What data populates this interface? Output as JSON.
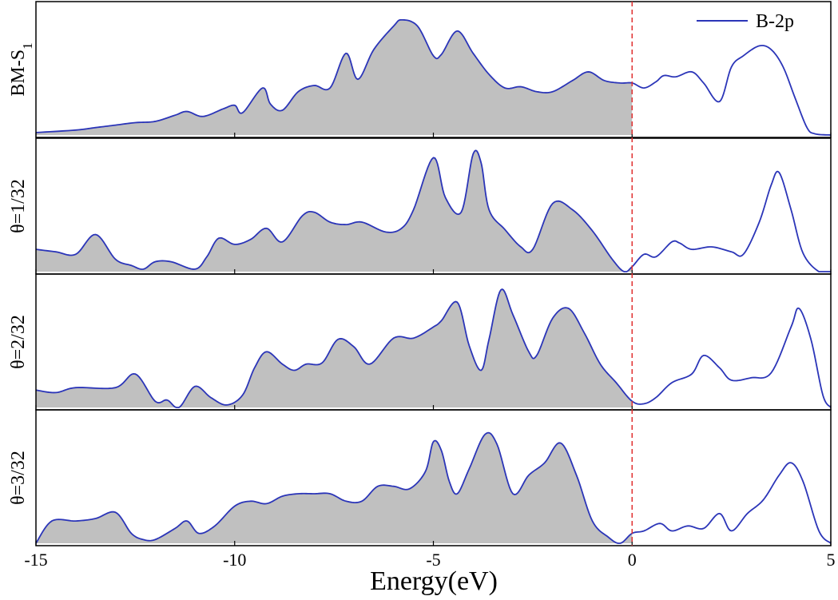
{
  "chart_data": {
    "type": "area",
    "title": "",
    "xlabel": "Energy(eV)",
    "ylabel": "",
    "xlim": [
      -15,
      5
    ],
    "x_ticks": [
      "-15",
      "-10",
      "-5",
      "0",
      "5"
    ],
    "fermi_level": 0,
    "fill_below_fermi": true,
    "legend": {
      "label": "B-2p",
      "placement": "top-right"
    },
    "colors": {
      "line": "#2b35b8",
      "fill": "#c0c0c0",
      "fermi": "#e03030"
    },
    "panels": [
      {
        "label": "BM-S",
        "label_sub": "1",
        "series": {
          "name": "B-2p",
          "x": [
            -15,
            -14,
            -13.5,
            -13,
            -12.5,
            -12,
            -11.5,
            -11.2,
            -10.8,
            -10.3,
            -10,
            -9.8,
            -9.3,
            -9.1,
            -8.8,
            -8.4,
            -8,
            -7.6,
            -7.2,
            -6.9,
            -6.5,
            -6,
            -5.8,
            -5.4,
            -5,
            -4.8,
            -4.4,
            -4,
            -3.6,
            -3.2,
            -2.8,
            -2.4,
            -2,
            -1.5,
            -1.1,
            -0.7,
            -0.3,
            0,
            0.3,
            0.6,
            0.8,
            1.1,
            1.5,
            1.8,
            2.2,
            2.5,
            2.8,
            3.2,
            3.5,
            3.8,
            4.1,
            4.4,
            4.6,
            5
          ],
          "y": [
            0.02,
            0.04,
            0.06,
            0.08,
            0.1,
            0.11,
            0.16,
            0.19,
            0.15,
            0.21,
            0.24,
            0.18,
            0.38,
            0.25,
            0.2,
            0.35,
            0.4,
            0.38,
            0.66,
            0.45,
            0.69,
            0.88,
            0.93,
            0.88,
            0.64,
            0.65,
            0.84,
            0.66,
            0.49,
            0.38,
            0.39,
            0.35,
            0.35,
            0.44,
            0.51,
            0.44,
            0.42,
            0.42,
            0.38,
            0.43,
            0.48,
            0.47,
            0.51,
            0.42,
            0.27,
            0.55,
            0.64,
            0.72,
            0.69,
            0.55,
            0.3,
            0.06,
            0.01,
            0.0
          ]
        }
      },
      {
        "label": "θ=1/32",
        "series": {
          "name": "B-2p",
          "x": [
            -15,
            -14.5,
            -14,
            -13.5,
            -13,
            -12.6,
            -12.3,
            -12,
            -11.6,
            -11,
            -10.7,
            -10.4,
            -10,
            -9.6,
            -9.2,
            -8.8,
            -8.3,
            -8,
            -7.6,
            -7.2,
            -6.8,
            -6.2,
            -5.8,
            -5.5,
            -5,
            -4.7,
            -4.3,
            -4,
            -3.8,
            -3.6,
            -3.2,
            -2.8,
            -2.5,
            -2,
            -1.5,
            -1,
            -0.5,
            -0.2,
            0,
            0.3,
            0.6,
            1,
            1.2,
            1.5,
            2,
            2.5,
            2.8,
            3.2,
            3.5,
            3.7,
            4,
            4.3,
            4.7,
            5
          ],
          "y": [
            0.18,
            0.16,
            0.14,
            0.3,
            0.1,
            0.05,
            0.02,
            0.08,
            0.08,
            0.02,
            0.12,
            0.27,
            0.22,
            0.26,
            0.35,
            0.24,
            0.45,
            0.48,
            0.4,
            0.38,
            0.4,
            0.32,
            0.35,
            0.5,
            0.92,
            0.6,
            0.48,
            0.95,
            0.88,
            0.5,
            0.34,
            0.2,
            0.18,
            0.55,
            0.5,
            0.33,
            0.1,
            0.0,
            0.04,
            0.14,
            0.12,
            0.24,
            0.23,
            0.18,
            0.2,
            0.16,
            0.14,
            0.4,
            0.7,
            0.8,
            0.5,
            0.15,
            0.0,
            0.0
          ]
        }
      },
      {
        "label": "θ=2/32",
        "series": {
          "name": "B-2p",
          "x": [
            -15,
            -14.5,
            -14,
            -13,
            -12.5,
            -12,
            -11.7,
            -11.4,
            -11,
            -10.6,
            -10.2,
            -9.8,
            -9.5,
            -9.2,
            -8.8,
            -8.5,
            -8.2,
            -7.8,
            -7.4,
            -7,
            -6.6,
            -6,
            -5.5,
            -5,
            -4.8,
            -4.4,
            -4.1,
            -3.8,
            -3.6,
            -3.3,
            -3,
            -2.6,
            -2.4,
            -2,
            -1.6,
            -1.2,
            -0.8,
            -0.4,
            0,
            0.3,
            0.6,
            1,
            1.5,
            1.8,
            2.2,
            2.5,
            3,
            3.5,
            4,
            4.2,
            4.5,
            4.8,
            5
          ],
          "y": [
            0.14,
            0.12,
            0.16,
            0.16,
            0.27,
            0.05,
            0.06,
            0.0,
            0.17,
            0.08,
            0.02,
            0.1,
            0.32,
            0.45,
            0.35,
            0.3,
            0.35,
            0.36,
            0.55,
            0.49,
            0.35,
            0.56,
            0.56,
            0.65,
            0.7,
            0.85,
            0.5,
            0.3,
            0.55,
            0.95,
            0.75,
            0.45,
            0.42,
            0.72,
            0.8,
            0.6,
            0.35,
            0.2,
            0.05,
            0.03,
            0.08,
            0.2,
            0.27,
            0.42,
            0.32,
            0.22,
            0.24,
            0.28,
            0.65,
            0.8,
            0.55,
            0.1,
            0.0
          ]
        }
      },
      {
        "label": "θ=3/32",
        "series": {
          "name": "B-2p",
          "x": [
            -15,
            -14.6,
            -14,
            -13.5,
            -13,
            -12.6,
            -12.3,
            -12,
            -11.5,
            -11.2,
            -10.9,
            -10.5,
            -10,
            -9.6,
            -9.2,
            -8.8,
            -8.4,
            -8,
            -7.6,
            -7.2,
            -6.8,
            -6.4,
            -6,
            -5.6,
            -5.2,
            -5,
            -4.8,
            -4.6,
            -4.4,
            -4.1,
            -3.7,
            -3.4,
            -3,
            -2.6,
            -2.2,
            -1.8,
            -1.4,
            -1,
            -0.6,
            -0.3,
            0,
            0.3,
            0.7,
            1,
            1.4,
            1.8,
            2.2,
            2.5,
            2.9,
            3.3,
            3.7,
            4,
            4.3,
            4.7,
            5
          ],
          "y": [
            0.0,
            0.18,
            0.18,
            0.2,
            0.25,
            0.08,
            0.03,
            0.03,
            0.12,
            0.18,
            0.08,
            0.14,
            0.3,
            0.34,
            0.32,
            0.38,
            0.4,
            0.4,
            0.4,
            0.34,
            0.34,
            0.46,
            0.46,
            0.44,
            0.58,
            0.82,
            0.75,
            0.5,
            0.4,
            0.6,
            0.88,
            0.8,
            0.4,
            0.55,
            0.65,
            0.81,
            0.55,
            0.18,
            0.05,
            0.0,
            0.08,
            0.1,
            0.16,
            0.1,
            0.14,
            0.12,
            0.24,
            0.1,
            0.24,
            0.35,
            0.55,
            0.65,
            0.5,
            0.1,
            0.0
          ]
        }
      }
    ]
  }
}
